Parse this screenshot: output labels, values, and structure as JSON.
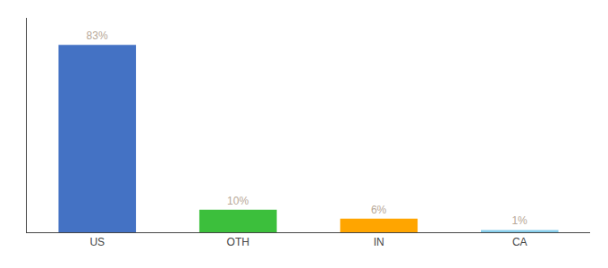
{
  "chart_data": {
    "type": "bar",
    "categories": [
      "US",
      "OTH",
      "IN",
      "CA"
    ],
    "values": [
      83,
      10,
      6,
      1
    ],
    "value_labels": [
      "83%",
      "10%",
      "6%",
      "1%"
    ],
    "colors": [
      "#4472C4",
      "#3CBF3C",
      "#FFA500",
      "#87CEEB"
    ],
    "ylim": [
      0,
      95
    ],
    "grid": false,
    "data_labels": true,
    "tick_labels": "x"
  }
}
